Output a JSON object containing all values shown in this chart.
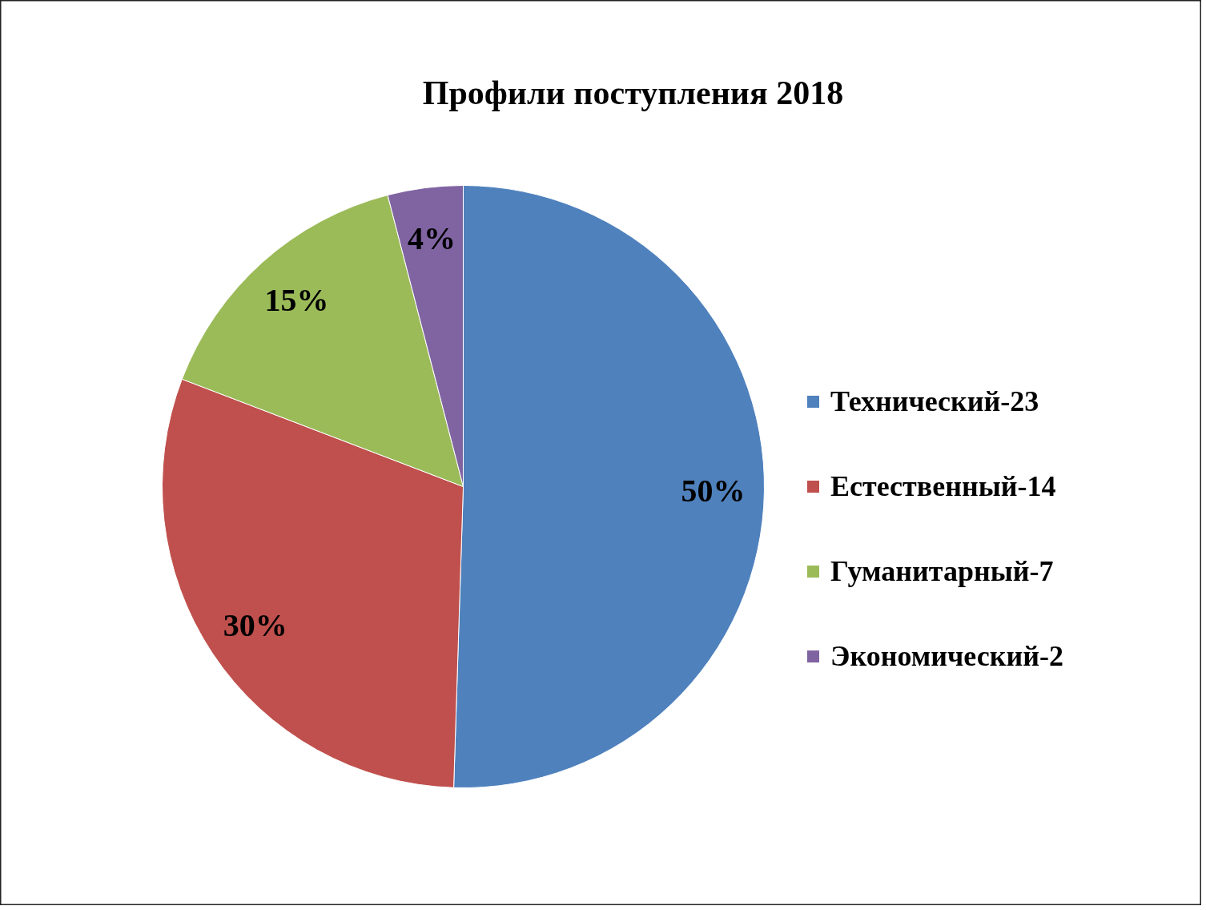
{
  "chart_data": {
    "type": "pie",
    "title": "Профили поступления 2018",
    "categories": [
      "Технический-23",
      "Естественный-14",
      "Гуманитарный-7",
      "Экономический-2"
    ],
    "values": [
      50,
      30,
      15,
      4
    ],
    "value_labels": [
      "50%",
      "30%",
      "15%",
      "4%"
    ],
    "colors": [
      "#4f81bd",
      "#c0504d",
      "#9bbb59",
      "#8064a2"
    ],
    "legend": "right"
  }
}
